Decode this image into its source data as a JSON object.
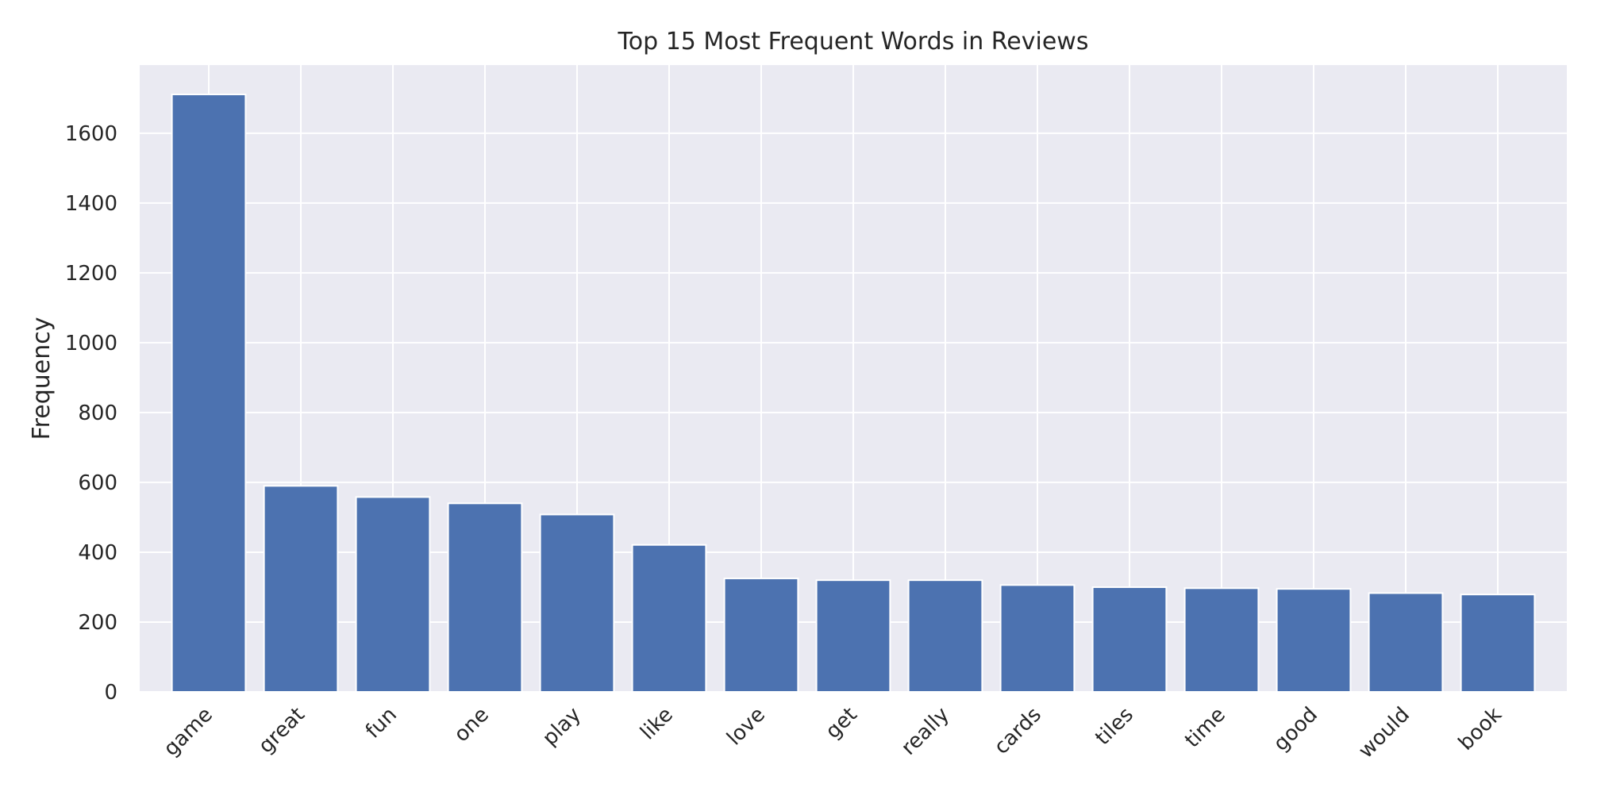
{
  "chart_data": {
    "type": "bar",
    "title": "Top 15 Most Frequent Words in Reviews",
    "xlabel": "",
    "ylabel": "Frequency",
    "categories": [
      "game",
      "great",
      "fun",
      "one",
      "play",
      "like",
      "love",
      "get",
      "really",
      "cards",
      "tiles",
      "time",
      "good",
      "would",
      "book"
    ],
    "values": [
      1711,
      590,
      558,
      540,
      508,
      421,
      325,
      320,
      320,
      306,
      300,
      297,
      295,
      283,
      279
    ],
    "ylim": [
      0,
      1795
    ],
    "yticks": [
      0,
      200,
      400,
      600,
      800,
      1000,
      1200,
      1400,
      1600
    ],
    "grid": true,
    "legend": "none",
    "colors": {
      "bar": "#4c72b0",
      "plot_background": "#eaeaf2",
      "grid": "#ffffff"
    }
  }
}
